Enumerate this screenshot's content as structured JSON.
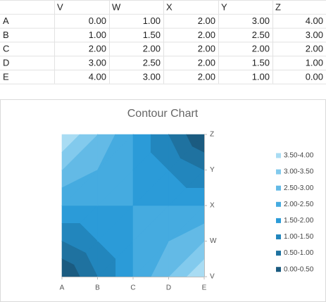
{
  "table": {
    "header": [
      "V",
      "W",
      "X",
      "Y",
      "Z"
    ],
    "rows": [
      [
        "A",
        "0.00",
        "1.00",
        "2.00",
        "3.00",
        "4.00"
      ],
      [
        "B",
        "1.00",
        "1.50",
        "2.00",
        "2.50",
        "3.00"
      ],
      [
        "C",
        "2.00",
        "2.00",
        "2.00",
        "2.00",
        "2.00"
      ],
      [
        "D",
        "3.00",
        "2.50",
        "2.00",
        "1.50",
        "1.00"
      ],
      [
        "E",
        "4.00",
        "3.00",
        "2.00",
        "1.00",
        "0.00"
      ]
    ]
  },
  "chart_data": {
    "type": "contour",
    "title": "Contour Chart",
    "x": [
      "A",
      "B",
      "C",
      "D",
      "E"
    ],
    "y": [
      "V",
      "W",
      "X",
      "Y",
      "Z"
    ],
    "z": [
      [
        0,
        1,
        2,
        3,
        4
      ],
      [
        1,
        1.5,
        2,
        2.5,
        3
      ],
      [
        2,
        2,
        2,
        2,
        2
      ],
      [
        3,
        2.5,
        2,
        1.5,
        1
      ],
      [
        4,
        3,
        2,
        1,
        0
      ]
    ],
    "legend_position": "right",
    "bands": [
      {
        "label": "3.50-4.00",
        "min": 3.5,
        "max": 4,
        "color": "#a9dcf3"
      },
      {
        "label": "3.00-3.50",
        "min": 3,
        "max": 3.5,
        "color": "#82caed"
      },
      {
        "label": "2.50-3.00",
        "min": 2.5,
        "max": 3,
        "color": "#63bae6"
      },
      {
        "label": "2.00-2.50",
        "min": 2,
        "max": 2.5,
        "color": "#45abe0"
      },
      {
        "label": "1.50-2.00",
        "min": 1.5,
        "max": 2,
        "color": "#2b9bd8"
      },
      {
        "label": "1.00-1.50",
        "min": 1,
        "max": 1.5,
        "color": "#2286bd"
      },
      {
        "label": "0.50-1.00",
        "min": 0.5,
        "max": 1,
        "color": "#1f72a0"
      },
      {
        "label": "0.00-0.50",
        "min": 0,
        "max": 0.5,
        "color": "#1b5b80"
      }
    ]
  }
}
